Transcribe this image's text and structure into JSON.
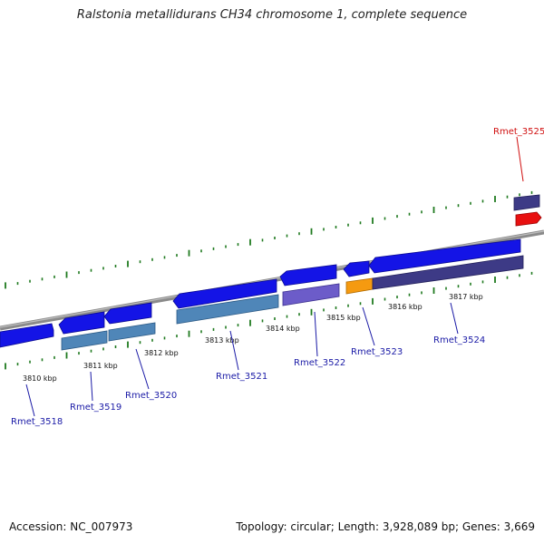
{
  "title": "Ralstonia metallidurans CH34 chromosome 1, complete sequence",
  "accession": "Accession: NC_007973",
  "topology": "Topology: circular; Length: 3,928,089 bp; Genes: 3,669",
  "colors": {
    "backbone": "#8a8a8a",
    "tick": "#1f7a1f",
    "gene_forward": "#1414e6",
    "gene_label": "#1a1aa6",
    "gene_highlight": "#d01010",
    "feature_steel": "#4f86b8",
    "feature_violet": "#6c5cc9",
    "feature_orange": "#f59a10",
    "feature_indigo": "#3d3a86"
  },
  "kbp_labels": [
    "3810 kbp",
    "3811 kbp",
    "3812 kbp",
    "3813 kbp",
    "3814 kbp",
    "3815 kbp",
    "3816 kbp",
    "3817 kbp"
  ],
  "genes": [
    "Rmet_3518",
    "Rmet_3519",
    "Rmet_3520",
    "Rmet_3521",
    "Rmet_3522",
    "Rmet_3523",
    "Rmet_3524",
    "Rmet_3525"
  ]
}
